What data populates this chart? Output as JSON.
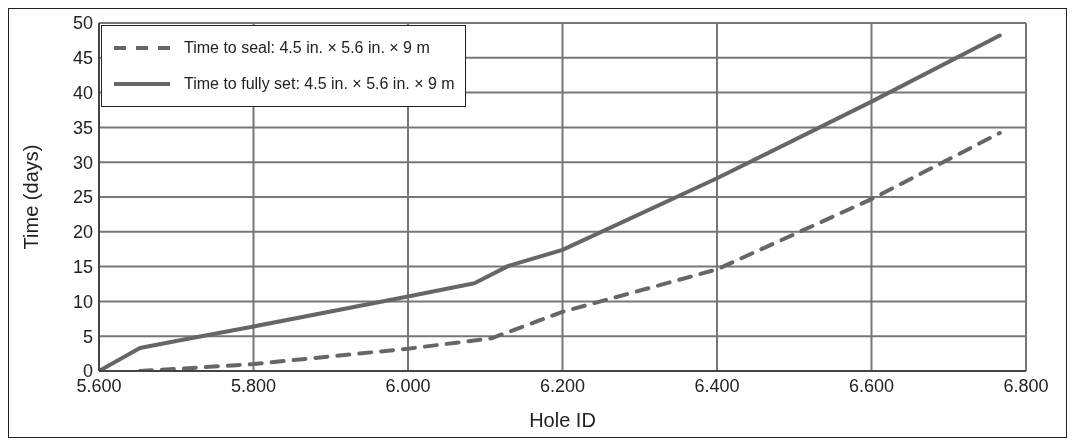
{
  "chart_data": {
    "type": "line",
    "xlabel": "Hole ID",
    "ylabel": "Time (days)",
    "xlim": [
      5.6,
      6.8
    ],
    "xticks": [
      {
        "value": 5.6,
        "label": "5.600"
      },
      {
        "value": 5.8,
        "label": "5.800"
      },
      {
        "value": 6.0,
        "label": "6.000"
      },
      {
        "value": 6.2,
        "label": "6.200"
      },
      {
        "value": 6.4,
        "label": "6.400"
      },
      {
        "value": 6.6,
        "label": "6.600"
      },
      {
        "value": 6.8,
        "label": "6.800"
      }
    ],
    "ylim": [
      0,
      50
    ],
    "yticks": [
      0,
      5,
      10,
      15,
      20,
      25,
      30,
      35,
      40,
      45,
      50
    ],
    "grid": true,
    "legend": "top left",
    "series": [
      {
        "name": "Time to seal: 4.5 in. × 5.6 in. × 9 m",
        "color": "#666666",
        "line_style": "dashed",
        "x": [
          5.653,
          5.7,
          5.8,
          6.0,
          6.108,
          6.2,
          6.4,
          6.6,
          6.766
        ],
        "values": [
          0,
          0.3,
          1.0,
          3.2,
          4.7,
          8.5,
          14.6,
          24.7,
          34.2
        ]
      },
      {
        "name": "Time to fully set: 4.5 in. × 5.6 in. × 9 m",
        "color": "#666666",
        "line_style": "solid",
        "x": [
          5.6,
          5.653,
          5.7,
          5.8,
          6.0,
          6.086,
          6.13,
          6.2,
          6.4,
          6.6,
          6.766
        ],
        "values": [
          0,
          3.3,
          4.3,
          6.4,
          10.7,
          12.6,
          15.1,
          17.4,
          27.7,
          38.7,
          48.2
        ]
      }
    ]
  }
}
